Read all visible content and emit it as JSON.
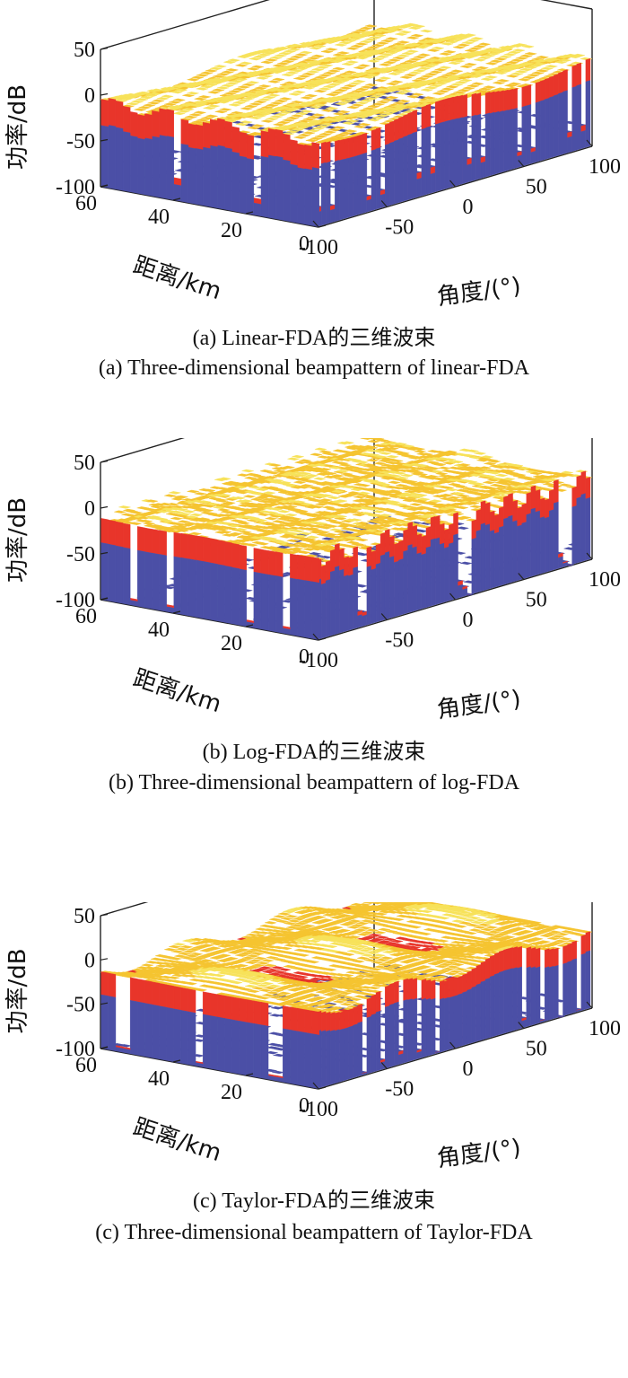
{
  "chart_data": [
    {
      "type": "surface3d",
      "panel_label": "(a)",
      "caption_cn": "(a) Linear-FDA的三维波束",
      "caption_en": "(a) Three-dimensional beampattern of linear-FDA",
      "zlabel": "功率/dB",
      "xlabel": "角度/(°)",
      "ylabel": "距离/km",
      "xticks": [
        "-100",
        "-50",
        "0",
        "50",
        "100"
      ],
      "yticks": [
        "0",
        "20",
        "40",
        "60"
      ],
      "zticks": [
        "50",
        "0",
        "-50",
        "-100"
      ],
      "xlim": [
        -100,
        100
      ],
      "ylim": [
        0,
        60
      ],
      "zlim": [
        -100,
        50
      ],
      "colormap": [
        "#4b4fa6",
        "#e8352a",
        "#f5c430",
        "#f7e25a"
      ],
      "ridges_range_km": [
        10,
        20,
        30,
        40,
        50
      ],
      "peak_dB": 0,
      "floor_dB": -100
    },
    {
      "type": "surface3d",
      "panel_label": "(b)",
      "caption_cn": "(b) Log-FDA的三维波束",
      "caption_en": "(b) Three-dimensional beampattern of log-FDA",
      "zlabel": "功率/dB",
      "xlabel": "角度/(°)",
      "ylabel": "距离/km",
      "xticks": [
        "-100",
        "-50",
        "0",
        "50",
        "100"
      ],
      "yticks": [
        "0",
        "20",
        "40",
        "60"
      ],
      "zticks": [
        "50",
        "0",
        "-50",
        "-100"
      ],
      "xlim": [
        -100,
        100
      ],
      "ylim": [
        0,
        60
      ],
      "zlim": [
        -100,
        50
      ],
      "colormap": [
        "#4b4fa6",
        "#e8352a",
        "#f5c430",
        "#f7e25a"
      ],
      "peak_dB": 0,
      "floor_dB": -100
    },
    {
      "type": "surface3d",
      "panel_label": "(c)",
      "caption_cn": "(c) Taylor-FDA的三维波束",
      "caption_en": "(c) Three-dimensional beampattern of Taylor-FDA",
      "zlabel": "功率/dB",
      "xlabel": "角度/(°)",
      "ylabel": "距离/km",
      "xticks": [
        "-100",
        "-50",
        "0",
        "50",
        "100"
      ],
      "yticks": [
        "0",
        "20",
        "40",
        "60"
      ],
      "zticks": [
        "50",
        "0",
        "-50",
        "-100"
      ],
      "xlim": [
        -100,
        100
      ],
      "ylim": [
        0,
        60
      ],
      "zlim": [
        -100,
        50
      ],
      "colormap": [
        "#4b4fa6",
        "#e8352a",
        "#f5c430",
        "#f7e25a"
      ],
      "peak_dB": 0,
      "floor_dB": -100
    }
  ]
}
